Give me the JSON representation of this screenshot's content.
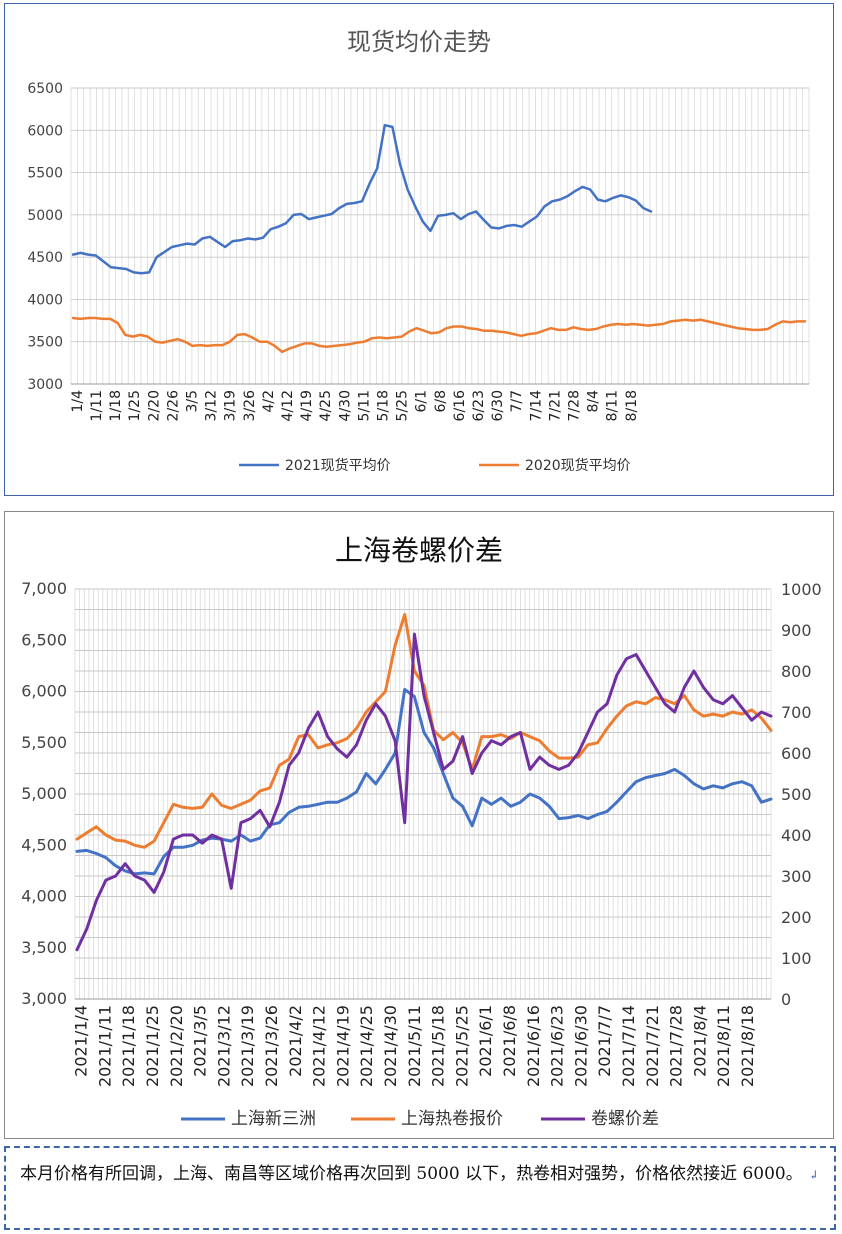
{
  "chart_data": [
    {
      "type": "line",
      "title": "现货均价走势",
      "ylim": [
        3000,
        6500
      ],
      "yticks": [
        "3000",
        "3500",
        "4000",
        "4500",
        "5000",
        "5500",
        "6000",
        "6500"
      ],
      "x_tick_labels": [
        "1/4",
        "1/11",
        "1/18",
        "1/25",
        "2/20",
        "2/26",
        "3/5",
        "3/12",
        "3/19",
        "3/26",
        "4/2",
        "4/12",
        "4/19",
        "4/25",
        "4/30",
        "5/11",
        "5/18",
        "5/25",
        "6/1",
        "6/8",
        "6/16",
        "6/23",
        "6/30",
        "7/7",
        "7/14",
        "7/21",
        "7/28",
        "8/4",
        "8/11",
        "8/18"
      ],
      "grid": true,
      "legend_position": "bottom",
      "series": [
        {
          "name": "2021现货平均价",
          "color": "#4472c4",
          "values": [
            4530,
            4550,
            4530,
            4520,
            4450,
            4380,
            4370,
            4360,
            4320,
            4310,
            4320,
            4500,
            4560,
            4620,
            4640,
            4660,
            4650,
            4720,
            4740,
            4680,
            4620,
            4690,
            4700,
            4720,
            4710,
            4730,
            4830,
            4860,
            4900,
            5000,
            5010,
            4950,
            4970,
            4990,
            5010,
            5080,
            5130,
            5140,
            5160,
            5370,
            5550,
            6060,
            6040,
            5600,
            5300,
            5100,
            4920,
            4810,
            4990,
            5000,
            5020,
            4950,
            5010,
            5040,
            4940,
            4850,
            4840,
            4870,
            4880,
            4860,
            4920,
            4980,
            5100,
            5160,
            5180,
            5220,
            5280,
            5330,
            5300,
            5180,
            5160,
            5200,
            5230,
            5210,
            5170,
            5080,
            5040
          ]
        },
        {
          "name": "2020现货平均价",
          "color": "#ed7d31",
          "values": [
            3780,
            3770,
            3780,
            3780,
            3770,
            3770,
            3720,
            3580,
            3560,
            3580,
            3560,
            3500,
            3490,
            3510,
            3530,
            3500,
            3450,
            3460,
            3450,
            3460,
            3460,
            3500,
            3580,
            3590,
            3550,
            3500,
            3500,
            3450,
            3380,
            3420,
            3450,
            3480,
            3480,
            3450,
            3440,
            3450,
            3460,
            3470,
            3490,
            3500,
            3540,
            3550,
            3540,
            3550,
            3560,
            3620,
            3660,
            3630,
            3600,
            3610,
            3660,
            3680,
            3680,
            3660,
            3650,
            3630,
            3630,
            3620,
            3610,
            3590,
            3570,
            3590,
            3600,
            3630,
            3660,
            3640,
            3640,
            3670,
            3650,
            3640,
            3650,
            3680,
            3700,
            3710,
            3700,
            3710,
            3700,
            3690,
            3700,
            3710,
            3740,
            3750,
            3760,
            3750,
            3760,
            3740,
            3720,
            3700,
            3680,
            3660,
            3650,
            3640,
            3640,
            3650,
            3700,
            3740,
            3730,
            3740,
            3740
          ]
        }
      ]
    },
    {
      "type": "line",
      "title": "上海卷螺价差",
      "ylim": [
        3000,
        7000
      ],
      "y2lim": [
        0,
        1000
      ],
      "yticks": [
        "3,000",
        "3,500",
        "4,000",
        "4,500",
        "5,000",
        "5,500",
        "6,000",
        "6,500",
        "7,000"
      ],
      "y2ticks": [
        "0",
        "100",
        "200",
        "300",
        "400",
        "500",
        "600",
        "700",
        "800",
        "900",
        "1000"
      ],
      "x_tick_labels": [
        "2021/1/4",
        "2021/1/11",
        "2021/1/18",
        "2021/1/25",
        "2021/2/20",
        "2021/3/5",
        "2021/3/12",
        "2021/3/19",
        "2021/3/26",
        "2021/4/2",
        "2021/4/12",
        "2021/4/19",
        "2021/4/25",
        "2021/4/30",
        "2021/5/11",
        "2021/5/18",
        "2021/5/25",
        "2021/6/1",
        "2021/6/8",
        "2021/6/16",
        "2021/6/23",
        "2021/6/30",
        "2021/7/7",
        "2021/7/14",
        "2021/7/21",
        "2021/7/28",
        "2021/8/4",
        "2021/8/11",
        "2021/8/18"
      ],
      "grid": true,
      "legend_position": "bottom",
      "series": [
        {
          "name": "上海新三洲",
          "color": "#4472c4",
          "axis": "left",
          "values": [
            4440,
            4450,
            4420,
            4380,
            4300,
            4250,
            4220,
            4230,
            4220,
            4390,
            4480,
            4480,
            4500,
            4550,
            4570,
            4560,
            4540,
            4600,
            4540,
            4570,
            4700,
            4720,
            4820,
            4870,
            4880,
            4900,
            4920,
            4920,
            4960,
            5020,
            5200,
            5100,
            5240,
            5400,
            6020,
            5950,
            5600,
            5450,
            5200,
            4960,
            4880,
            4690,
            4960,
            4900,
            4960,
            4880,
            4920,
            5000,
            4960,
            4880,
            4760,
            4770,
            4790,
            4760,
            4800,
            4830,
            4920,
            5020,
            5120,
            5160,
            5180,
            5200,
            5240,
            5180,
            5100,
            5050,
            5080,
            5060,
            5100,
            5120,
            5080,
            4920,
            4950
          ]
        },
        {
          "name": "上海热卷报价",
          "color": "#ed7d31",
          "axis": "left",
          "values": [
            4560,
            4620,
            4680,
            4600,
            4550,
            4540,
            4500,
            4480,
            4540,
            4720,
            4900,
            4870,
            4860,
            4870,
            5000,
            4890,
            4860,
            4900,
            4940,
            5030,
            5060,
            5280,
            5340,
            5560,
            5580,
            5450,
            5480,
            5500,
            5540,
            5640,
            5800,
            5900,
            6000,
            6450,
            6750,
            6200,
            6060,
            5620,
            5530,
            5600,
            5500,
            5240,
            5560,
            5560,
            5580,
            5540,
            5600,
            5560,
            5520,
            5420,
            5350,
            5350,
            5360,
            5480,
            5500,
            5640,
            5760,
            5860,
            5900,
            5880,
            5940,
            5920,
            5880,
            5960,
            5820,
            5760,
            5780,
            5760,
            5800,
            5780,
            5820,
            5740,
            5620
          ]
        },
        {
          "name": "卷螺价差",
          "color": "#7030a0",
          "axis": "right",
          "values": [
            120,
            170,
            240,
            290,
            300,
            330,
            300,
            290,
            260,
            310,
            390,
            400,
            400,
            380,
            400,
            390,
            270,
            430,
            440,
            460,
            420,
            480,
            570,
            600,
            660,
            700,
            640,
            610,
            590,
            620,
            680,
            720,
            690,
            630,
            430,
            890,
            740,
            650,
            560,
            580,
            640,
            550,
            600,
            630,
            620,
            640,
            650,
            560,
            590,
            570,
            560,
            570,
            600,
            650,
            700,
            720,
            790,
            830,
            840,
            800,
            760,
            720,
            700,
            760,
            800,
            760,
            730,
            720,
            740,
            710,
            680,
            700,
            690
          ]
        }
      ]
    }
  ],
  "note": {
    "text": "本月价格有所回调，上海、南昌等区域价格再次回到 5000 以下，热卷相对强势，价格依然接近 6000。"
  }
}
